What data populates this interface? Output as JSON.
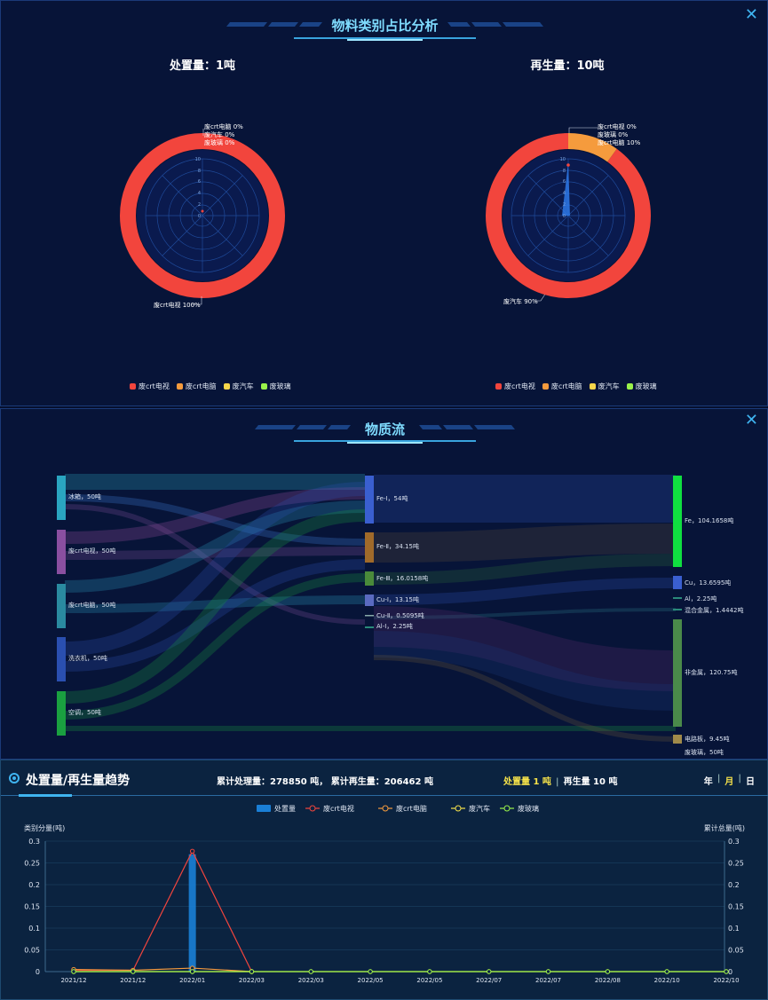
{
  "ratio_panel": {
    "title": "物料类别占比分析",
    "disposal_title": "处置量：1吨",
    "regen_title": "再生量：10吨",
    "legend": [
      {
        "name": "废crt电视",
        "color": "#f2453d"
      },
      {
        "name": "废crt电脑",
        "color": "#f59b3d"
      },
      {
        "name": "废汽车",
        "color": "#f7d64a"
      },
      {
        "name": "废玻璃",
        "color": "#9af24a"
      }
    ],
    "disposal_labels": [
      "废crt电脑 0%",
      "废汽车 0%",
      "废玻璃 0%",
      "废crt电视 100%"
    ],
    "regen_labels": [
      "废crt电视 0%",
      "废玻璃 0%",
      "废crt电脑 10%",
      "废汽车 90%"
    ],
    "radar_ticks": [
      "10",
      "8",
      "6",
      "4",
      "2",
      "0"
    ]
  },
  "flow_panel": {
    "title": "物质流",
    "sources": [
      "冰箱，50吨",
      "废crt电视，50吨",
      "废crt电脑，50吨",
      "洗衣机，50吨",
      "空调，50吨"
    ],
    "mids": [
      "Fe-Ⅰ，54吨",
      "Fe-Ⅱ，34.15吨",
      "Fe-Ⅲ，16.0158吨",
      "Cu-Ⅰ，13.15吨",
      "Cu-Ⅱ，0.5095吨",
      "Al-Ⅰ，2.25吨"
    ],
    "targets": [
      "Fe，104.1658吨",
      "Cu，13.6595吨",
      "Al，2.25吨",
      "混合金属，1.4442吨",
      "非金属，120.75吨",
      "电路板，9.45吨",
      "废玻璃，50吨"
    ]
  },
  "trend_panel": {
    "title": "处置量/再生量趋势",
    "totals": "累计处理量：278850 吨，  累计再生量：206462 吨",
    "current_disposal": "处置量 1 吨",
    "current_regen": "再生量 10 吨",
    "period_year": "年",
    "period_month": "月",
    "period_day": "日",
    "legend": [
      "处置量",
      "废crt电视",
      "废crt电脑",
      "废汽车",
      "废玻璃"
    ],
    "y_left_label": "类别分量(吨)",
    "y_right_label": "累计总量(吨)"
  },
  "chart_data": {
    "type": "line",
    "x": [
      "2021/12",
      "2021/12",
      "2022/01",
      "2022/03",
      "2022/03",
      "2022/05",
      "2022/05",
      "2022/07",
      "2022/07",
      "2022/08",
      "2022/10",
      "2022/10"
    ],
    "ylim": [
      0,
      0.3
    ],
    "y_ticks": [
      "0.3",
      "0.25",
      "0.2",
      "0.15",
      "0.1",
      "0.05",
      "0"
    ],
    "series": [
      {
        "name": "处置量",
        "kind": "bar",
        "color": "#1a7fd6",
        "values": [
          0,
          0,
          0.27,
          0,
          0,
          0,
          0,
          0,
          0,
          0,
          0,
          0
        ]
      },
      {
        "name": "废crt电视",
        "color": "#f2453d",
        "values": [
          0.003,
          0.003,
          0.277,
          0,
          null,
          null,
          null,
          null,
          null,
          null,
          null,
          null
        ]
      },
      {
        "name": "废crt电脑",
        "color": "#f59b3d",
        "values": [
          0.005,
          0.003,
          0.008,
          0,
          null,
          null,
          null,
          null,
          null,
          null,
          null,
          null
        ]
      },
      {
        "name": "废汽车",
        "color": "#f7e34a",
        "values": [
          0,
          0,
          0,
          0,
          0,
          0,
          0,
          0,
          0,
          0,
          0,
          0
        ]
      },
      {
        "name": "废玻璃",
        "color": "#9af24a",
        "values": [
          0,
          0,
          0,
          0,
          0,
          0,
          0,
          0,
          0,
          0,
          0,
          0
        ]
      }
    ]
  }
}
